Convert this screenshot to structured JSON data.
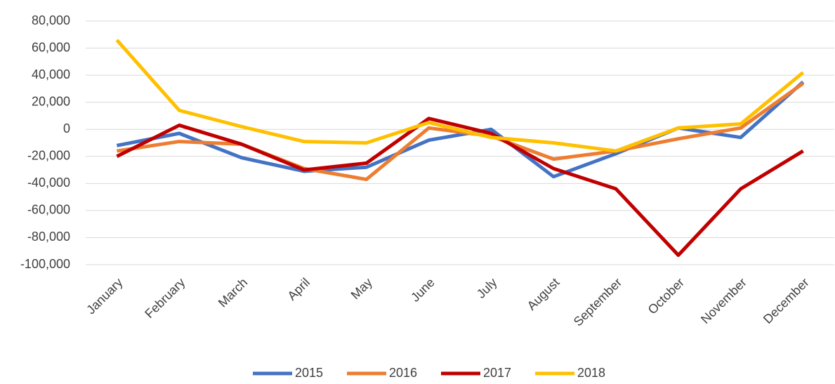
{
  "chart_data": {
    "type": "line",
    "categories": [
      "January",
      "February",
      "March",
      "April",
      "May",
      "June",
      "July",
      "August",
      "September",
      "October",
      "November",
      "December"
    ],
    "series": [
      {
        "name": "2015",
        "color": "#4472c4",
        "values": [
          -12000,
          -3000,
          -21000,
          -31000,
          -28000,
          -8000,
          0,
          -35000,
          -18000,
          1000,
          -6000,
          35000
        ]
      },
      {
        "name": "2016",
        "color": "#ed7d31",
        "values": [
          -16000,
          -9000,
          -11000,
          -29000,
          -37000,
          1000,
          -5000,
          -22000,
          -16000,
          -7000,
          1000,
          34000
        ]
      },
      {
        "name": "2017",
        "color": "#c00000",
        "values": [
          -20000,
          3000,
          -11000,
          -30000,
          -25000,
          8000,
          -3000,
          -29000,
          -44000,
          -93000,
          -44000,
          -16000
        ]
      },
      {
        "name": "2018",
        "color": "#ffc000",
        "values": [
          66000,
          14000,
          2000,
          -9000,
          -10000,
          5000,
          -6000,
          -10000,
          -16000,
          1000,
          4000,
          42000
        ]
      }
    ],
    "ylim": [
      -100000,
      80000
    ],
    "yticks": [
      {
        "value": -100000,
        "label": "-100,000"
      },
      {
        "value": -80000,
        "label": "-80,000"
      },
      {
        "value": -60000,
        "label": "-60,000"
      },
      {
        "value": -40000,
        "label": "-40,000"
      },
      {
        "value": -20000,
        "label": "-20,000"
      },
      0,
      {
        "value": 20000,
        "label": "20,000"
      },
      {
        "value": 40000,
        "label": "40,000"
      },
      {
        "value": 60000,
        "label": "60,000"
      },
      {
        "value": 80000,
        "label": "80,000"
      }
    ],
    "grid": true,
    "legend": "bottom"
  }
}
